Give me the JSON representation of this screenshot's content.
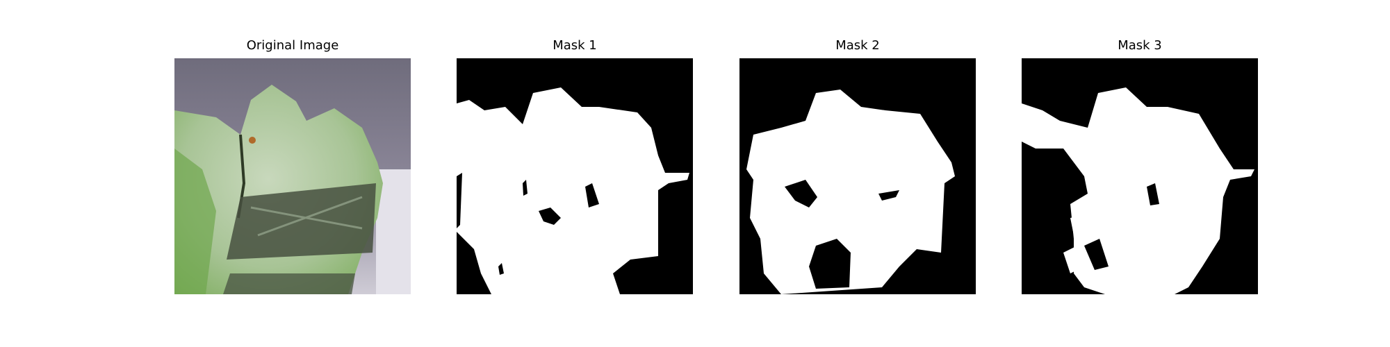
{
  "panels": [
    {
      "title": "Original Image"
    },
    {
      "title": "Mask 1"
    },
    {
      "title": "Mask 2"
    },
    {
      "title": "Mask 3"
    }
  ],
  "colors": {
    "background": "#ffffff",
    "mask_background": "#000000",
    "mask_foreground": "#ffffff",
    "backdrop": "#8a8697",
    "leaf_light": "#b6cfa3",
    "leaf_green": "#7fb061",
    "shadow": "#4b5348"
  }
}
